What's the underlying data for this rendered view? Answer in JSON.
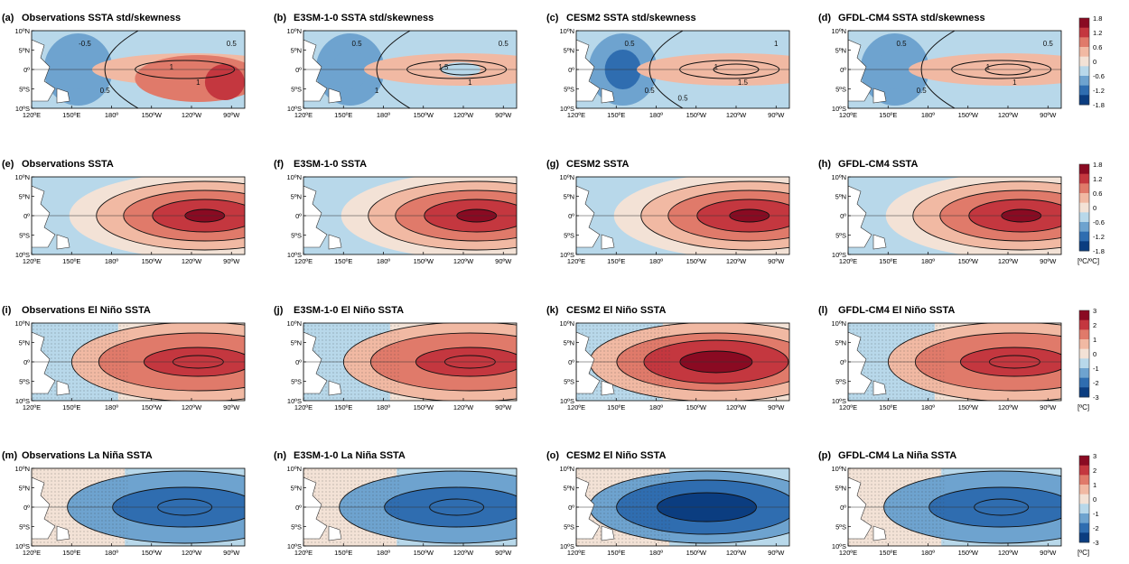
{
  "figure": {
    "rows": [
      {
        "panels": [
          {
            "label": "(a)",
            "title": "Observations SSTA std/skewness"
          },
          {
            "label": "(b)",
            "title": "E3SM-1-0 SSTA std/skewness"
          },
          {
            "label": "(c)",
            "title": "CESM2 SSTA std/skewness"
          },
          {
            "label": "(d)",
            "title": "GFDL-CM4 SSTA std/skewness"
          }
        ],
        "colorbar": {
          "ticks": [
            "1.8",
            "1.2",
            "0.6",
            "0",
            "-0.6",
            "-1.2",
            "-1.8"
          ],
          "unit": ""
        }
      },
      {
        "panels": [
          {
            "label": "(e)",
            "title": "Observations SSTA"
          },
          {
            "label": "(f)",
            "title": "E3SM-1-0 SSTA"
          },
          {
            "label": "(g)",
            "title": "CESM2 SSTA"
          },
          {
            "label": "(h)",
            "title": "GFDL-CM4 SSTA"
          }
        ],
        "colorbar": {
          "ticks": [
            "1.8",
            "1.2",
            "0.6",
            "0",
            "-0.6",
            "-1.2",
            "-1.8"
          ],
          "unit": "[ºC/ºC]"
        }
      },
      {
        "panels": [
          {
            "label": "(i)",
            "title": "Observations El Niño SSTA"
          },
          {
            "label": "(j)",
            "title": "E3SM-1-0 El Niño SSTA"
          },
          {
            "label": "(k)",
            "title": "CESM2 El Niño SSTA"
          },
          {
            "label": "(l)",
            "title": "GFDL-CM4 El Niño SSTA"
          }
        ],
        "colorbar": {
          "ticks": [
            "3",
            "2",
            "1",
            "0",
            "-1",
            "-2",
            "-3"
          ],
          "unit": "[ºC]"
        }
      },
      {
        "panels": [
          {
            "label": "(m)",
            "title": "Observations La Niña SSTA"
          },
          {
            "label": "(n)",
            "title": "E3SM-1-0 La Niña SSTA"
          },
          {
            "label": "(o)",
            "title": "CESM2 El Niño SSTA"
          },
          {
            "label": "(p)",
            "title": "GFDL-CM4 La Niña SSTA"
          }
        ],
        "colorbar": {
          "ticks": [
            "3",
            "2",
            "1",
            "0",
            "-1",
            "-2",
            "-3"
          ],
          "unit": "[ºC]"
        }
      }
    ]
  },
  "chart_data": {
    "type": "heatmap",
    "x_ticks": [
      "120ºE",
      "150ºE",
      "180º",
      "150ºW",
      "120ºW",
      "90ºW"
    ],
    "y_ticks": [
      "10ºN",
      "5ºN",
      "0º",
      "5ºS",
      "10ºS"
    ],
    "xlim_deg_east": [
      120,
      280
    ],
    "ylim_deg_north": [
      -10,
      10
    ],
    "x_tick_values_deg_east": [
      120,
      150,
      180,
      210,
      240,
      270
    ],
    "y_tick_values_deg_north": [
      10,
      5,
      0,
      -5,
      -10
    ],
    "boxes_deg": [],
    "contour_labels_row1": [
      [
        "-0.5",
        "0.5",
        "1",
        "1",
        "0.5"
      ],
      [
        "0.5",
        "1",
        "1.5",
        "1",
        "0.5"
      ],
      [
        "0.5",
        "0.5",
        "1",
        "1.5",
        "1",
        "0.5"
      ],
      [
        "0.5",
        "0.5",
        "1",
        "1",
        "0.5"
      ]
    ],
    "colors": {
      "box": "#1d8f3a",
      "colormap": [
        "#0b3d80",
        "#2f6db0",
        "#6ea3cf",
        "#b8d8ea",
        "#f3e2d6",
        "#f1b9a3",
        "#e07a6a",
        "#c4373f",
        "#8a0a22"
      ]
    }
  }
}
